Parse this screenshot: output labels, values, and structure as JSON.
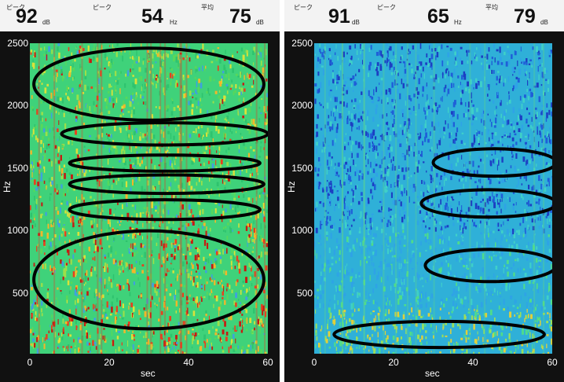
{
  "panels": [
    {
      "peak_db_label": "ピーク",
      "peak_db": "92",
      "peak_db_unit": "dB",
      "peak_hz_label": "ピーク",
      "peak_hz": "54",
      "peak_hz_unit": "Hz",
      "avg_label": "平均",
      "avg": "75",
      "avg_unit": "dB",
      "y_ticks": [
        "2500",
        "2000",
        "1500",
        "1000",
        "500"
      ],
      "x_ticks": [
        "0",
        "20",
        "40",
        "60"
      ],
      "y_label": "Hz",
      "x_label": "sec",
      "profile": "hot",
      "ellipses_hz": [
        {
          "t0": 1,
          "t1": 59,
          "f0": 1880,
          "f1": 2460
        },
        {
          "t0": 8,
          "t1": 60,
          "f0": 1680,
          "f1": 1860
        },
        {
          "t0": 10,
          "t1": 58,
          "f0": 1470,
          "f1": 1600
        },
        {
          "t0": 10,
          "t1": 59,
          "f0": 1290,
          "f1": 1440
        },
        {
          "t0": 10,
          "t1": 58,
          "f0": 1080,
          "f1": 1240
        },
        {
          "t0": 1,
          "t1": 59,
          "f0": 200,
          "f1": 990
        }
      ]
    },
    {
      "peak_db_label": "ピーク",
      "peak_db": "91",
      "peak_db_unit": "dB",
      "peak_hz_label": "ピーク",
      "peak_hz": "65",
      "peak_hz_unit": "Hz",
      "avg_label": "平均",
      "avg": "79",
      "avg_unit": "dB",
      "y_ticks": [
        "2500",
        "2000",
        "1500",
        "1000",
        "500"
      ],
      "x_ticks": [
        "0",
        "20",
        "40",
        "60"
      ],
      "y_label": "Hz",
      "x_label": "sec",
      "profile": "cool",
      "ellipses_hz": [
        {
          "t0": 30,
          "t1": 61,
          "f0": 1430,
          "f1": 1650
        },
        {
          "t0": 27,
          "t1": 61,
          "f0": 1100,
          "f1": 1320
        },
        {
          "t0": 28,
          "t1": 61,
          "f0": 580,
          "f1": 840
        },
        {
          "t0": 5,
          "t1": 58,
          "f0": 50,
          "f1": 260
        }
      ]
    }
  ]
}
